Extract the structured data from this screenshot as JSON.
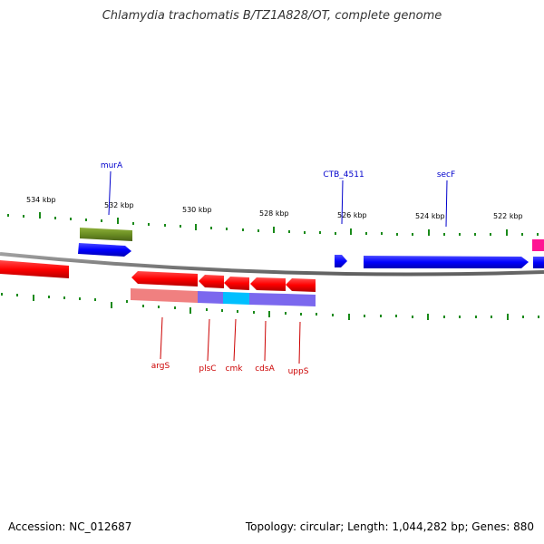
{
  "title": "Chlamydia trachomatis B/TZ1A828/OT, complete genome",
  "footer": {
    "accession": "Accession: NC_012687",
    "summary": "Topology: circular; Length: 1,044,282 bp; Genes: 880"
  },
  "colors": {
    "backbone": "#808080",
    "forward_gene": "#0000ff",
    "reverse_gene": "#ff0000",
    "forward_label": "#0000cc",
    "reverse_label": "#cc0000",
    "ticks": "#1a8a1a",
    "olive_feature": "#6b8e23",
    "magenta_feature": "#ff1493",
    "pink_feature": "#f08080",
    "purple_feature": "#7b68ee",
    "cyan_feature": "#00bfff"
  },
  "scale": {
    "unit": "kbp",
    "tick_labels": [
      "534 kbp",
      "532 kbp",
      "530 kbp",
      "528 kbp",
      "526 kbp",
      "524 kbp",
      "522 kbp"
    ]
  },
  "genes": {
    "forward": [
      "murA",
      "CTB_4511",
      "secF"
    ],
    "reverse": [
      "argS",
      "plsC",
      "cmk",
      "cdsA",
      "uppS"
    ]
  }
}
